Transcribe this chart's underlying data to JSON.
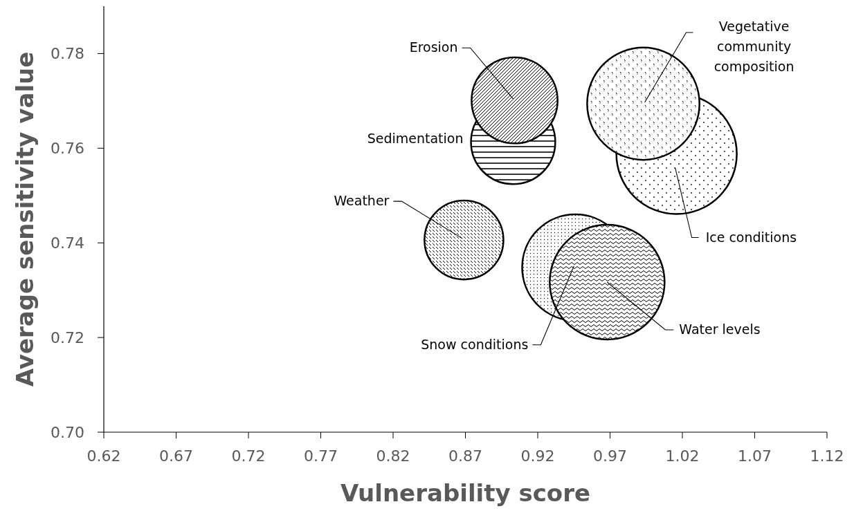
{
  "chart_data": {
    "type": "bubble",
    "xlabel": "Vulnerability score",
    "ylabel": "Average sensitivity value",
    "xlim": [
      0.62,
      1.12
    ],
    "xticks": [
      0.62,
      0.67,
      0.72,
      0.77,
      0.82,
      0.87,
      0.92,
      0.97,
      1.02,
      1.07,
      1.12
    ],
    "ylim": [
      0.7,
      0.79
    ],
    "yticks": [
      {
        "value": 0.7,
        "label": "0.70"
      },
      0.72,
      0.74,
      0.76,
      0.78
    ],
    "grid": false,
    "series": [
      {
        "name": "Weather",
        "color": "#000000",
        "x": [
          0.869
        ],
        "values": [
          0.7406
        ],
        "sizes": [
          0.43
        ]
      },
      {
        "name": "Sedimentation",
        "color": "#000000",
        "x": [
          0.903
        ],
        "values": [
          0.7613
        ],
        "sizes": [
          0.49
        ]
      },
      {
        "name": "Erosion",
        "color": "#000000",
        "x": [
          0.904
        ],
        "values": [
          0.7701
        ],
        "sizes": [
          0.51
        ]
      },
      {
        "name": "Ice conditions",
        "color": "#000000",
        "x": [
          1.016
        ],
        "values": [
          0.7588
        ],
        "sizes": [
          1
        ]
      },
      {
        "name": "Vegetative community composition",
        "color": "#000000",
        "x": [
          0.993
        ],
        "values": [
          0.7694
        ],
        "sizes": [
          0.87
        ]
      },
      {
        "name": "Snow conditions",
        "color": "#000000",
        "x": [
          0.946
        ],
        "values": [
          0.7348
        ],
        "sizes": [
          0.78
        ]
      },
      {
        "name": "Water levels",
        "color": "#000000",
        "x": [
          0.968
        ],
        "values": [
          0.7317
        ],
        "sizes": [
          0.91
        ]
      }
    ]
  }
}
